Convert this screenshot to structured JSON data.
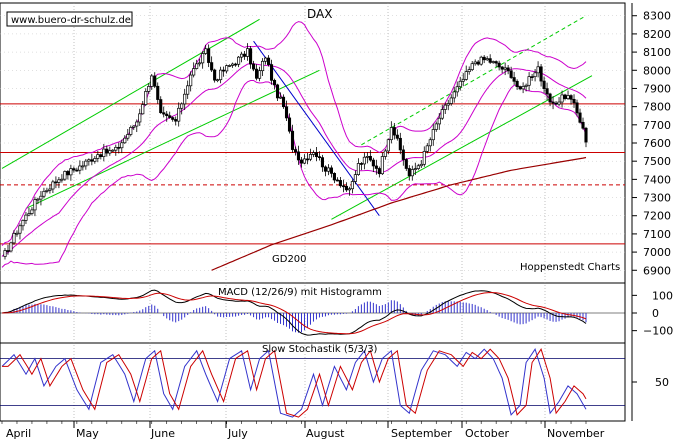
{
  "chart_data": {
    "type": "line",
    "title": "DAX",
    "watermark": "www.buero-dr-schulz.de",
    "credit": "Hoppenstedt Charts",
    "months": [
      "April",
      "May",
      "June",
      "July",
      "August",
      "September",
      "October",
      "November"
    ],
    "colors": {
      "candle": "#000000",
      "bollinger": "#cc00cc",
      "channel": "#00cc00",
      "downtrend": "#0000cc",
      "gd200": "#990000",
      "horizontal": "#cc0000",
      "macd": "#000000",
      "macd_signal": "#cc0000",
      "histogram": "#3333cc",
      "stoch_k": "#3333cc",
      "stoch_d": "#cc0000"
    },
    "price_panel": {
      "ylim": [
        6830,
        8370
      ],
      "yticks": [
        6900,
        7000,
        7100,
        7200,
        7300,
        7400,
        7500,
        7600,
        7700,
        7800,
        7900,
        8000,
        8100,
        8200,
        8300
      ],
      "gd200_label": "GD200",
      "horizontal_lines": [
        {
          "value": 7815,
          "style": "solid"
        },
        {
          "value": 7548,
          "style": "solid"
        },
        {
          "value": 7370,
          "style": "dashed"
        },
        {
          "value": 7045,
          "style": "solid"
        }
      ],
      "close_anchors": [
        {
          "t": 0,
          "v": 6960
        },
        {
          "t": 6,
          "v": 7150
        },
        {
          "t": 13,
          "v": 7320
        },
        {
          "t": 20,
          "v": 7420
        },
        {
          "t": 27,
          "v": 7480
        },
        {
          "t": 32,
          "v": 7540
        },
        {
          "t": 38,
          "v": 7560
        },
        {
          "t": 45,
          "v": 7720
        },
        {
          "t": 50,
          "v": 7980
        },
        {
          "t": 53,
          "v": 7750
        },
        {
          "t": 58,
          "v": 7720
        },
        {
          "t": 63,
          "v": 7980
        },
        {
          "t": 68,
          "v": 8100
        },
        {
          "t": 71,
          "v": 7950
        },
        {
          "t": 74,
          "v": 8000
        },
        {
          "t": 78,
          "v": 8050
        },
        {
          "t": 82,
          "v": 8100
        },
        {
          "t": 85,
          "v": 7950
        },
        {
          "t": 88,
          "v": 8080
        },
        {
          "t": 91,
          "v": 7900
        },
        {
          "t": 94,
          "v": 7800
        },
        {
          "t": 97,
          "v": 7580
        },
        {
          "t": 100,
          "v": 7500
        },
        {
          "t": 104,
          "v": 7560
        },
        {
          "t": 108,
          "v": 7460
        },
        {
          "t": 112,
          "v": 7400
        },
        {
          "t": 116,
          "v": 7330
        },
        {
          "t": 119,
          "v": 7480
        },
        {
          "t": 122,
          "v": 7520
        },
        {
          "t": 126,
          "v": 7450
        },
        {
          "t": 130,
          "v": 7700
        },
        {
          "t": 133,
          "v": 7560
        },
        {
          "t": 136,
          "v": 7420
        },
        {
          "t": 140,
          "v": 7500
        },
        {
          "t": 143,
          "v": 7620
        },
        {
          "t": 146,
          "v": 7740
        },
        {
          "t": 150,
          "v": 7850
        },
        {
          "t": 154,
          "v": 7950
        },
        {
          "t": 158,
          "v": 8050
        },
        {
          "t": 162,
          "v": 8060
        },
        {
          "t": 166,
          "v": 8020
        },
        {
          "t": 170,
          "v": 7980
        },
        {
          "t": 173,
          "v": 7880
        },
        {
          "t": 176,
          "v": 7960
        },
        {
          "t": 179,
          "v": 8020
        },
        {
          "t": 181,
          "v": 7880
        },
        {
          "t": 184,
          "v": 7800
        },
        {
          "t": 187,
          "v": 7860
        },
        {
          "t": 190,
          "v": 7850
        },
        {
          "t": 193,
          "v": 7720
        },
        {
          "t": 195,
          "v": 7620
        }
      ],
      "gd200": [
        {
          "t": 70,
          "v": 6900
        },
        {
          "t": 90,
          "v": 7040
        },
        {
          "t": 110,
          "v": 7150
        },
        {
          "t": 130,
          "v": 7270
        },
        {
          "t": 150,
          "v": 7370
        },
        {
          "t": 170,
          "v": 7450
        },
        {
          "t": 195,
          "v": 7520
        }
      ],
      "upper_channel": [
        {
          "line": 1,
          "t0": 0,
          "v0": 7460,
          "t1": 86,
          "v1": 8280
        },
        {
          "line": 2,
          "t0": 8,
          "v0": 7240,
          "t1": 106,
          "v1": 8000
        },
        {
          "line": 3,
          "t0": 110,
          "v0": 7180,
          "t1": 197,
          "v1": 7970
        },
        {
          "line": 4,
          "t0": 120,
          "v0": 7590,
          "t1": 195,
          "v1": 8300
        }
      ],
      "downtrend": {
        "t0": 84,
        "v0": 8160,
        "t1": 126,
        "v1": 7200
      }
    },
    "macd_panel": {
      "title": "MACD (12/26/9) mit Histogramm",
      "ylim": [
        -170,
        170
      ],
      "yticks": [
        100,
        0,
        -100
      ]
    },
    "stoch_panel": {
      "title": "Slow Stochastik (5/3/3)",
      "ylim": [
        0,
        100
      ],
      "yticks": [
        50
      ],
      "levels": [
        20,
        80
      ],
      "k_anchors": [
        {
          "t": 0,
          "v": 70
        },
        {
          "t": 4,
          "v": 85
        },
        {
          "t": 8,
          "v": 60
        },
        {
          "t": 11,
          "v": 80
        },
        {
          "t": 14,
          "v": 45
        },
        {
          "t": 18,
          "v": 70
        },
        {
          "t": 21,
          "v": 80
        },
        {
          "t": 25,
          "v": 40
        },
        {
          "t": 29,
          "v": 15
        },
        {
          "t": 33,
          "v": 75
        },
        {
          "t": 37,
          "v": 85
        },
        {
          "t": 41,
          "v": 60
        },
        {
          "t": 44,
          "v": 25
        },
        {
          "t": 48,
          "v": 80
        },
        {
          "t": 51,
          "v": 90
        },
        {
          "t": 54,
          "v": 35
        },
        {
          "t": 57,
          "v": 15
        },
        {
          "t": 61,
          "v": 70
        },
        {
          "t": 65,
          "v": 90
        },
        {
          "t": 68,
          "v": 60
        },
        {
          "t": 72,
          "v": 25
        },
        {
          "t": 76,
          "v": 80
        },
        {
          "t": 80,
          "v": 90
        },
        {
          "t": 83,
          "v": 40
        },
        {
          "t": 86,
          "v": 80
        },
        {
          "t": 89,
          "v": 90
        },
        {
          "t": 93,
          "v": 10
        },
        {
          "t": 97,
          "v": 5
        },
        {
          "t": 100,
          "v": 15
        },
        {
          "t": 104,
          "v": 60
        },
        {
          "t": 107,
          "v": 20
        },
        {
          "t": 111,
          "v": 70
        },
        {
          "t": 115,
          "v": 40
        },
        {
          "t": 118,
          "v": 75
        },
        {
          "t": 121,
          "v": 90
        },
        {
          "t": 124,
          "v": 50
        },
        {
          "t": 127,
          "v": 80
        },
        {
          "t": 130,
          "v": 90
        },
        {
          "t": 133,
          "v": 20
        },
        {
          "t": 136,
          "v": 10
        },
        {
          "t": 140,
          "v": 65
        },
        {
          "t": 144,
          "v": 90
        },
        {
          "t": 148,
          "v": 85
        },
        {
          "t": 152,
          "v": 70
        },
        {
          "t": 155,
          "v": 88
        },
        {
          "t": 158,
          "v": 80
        },
        {
          "t": 161,
          "v": 92
        },
        {
          "t": 164,
          "v": 80
        },
        {
          "t": 167,
          "v": 55
        },
        {
          "t": 170,
          "v": 8
        },
        {
          "t": 173,
          "v": 20
        },
        {
          "t": 175,
          "v": 75
        },
        {
          "t": 178,
          "v": 92
        },
        {
          "t": 181,
          "v": 55
        },
        {
          "t": 183,
          "v": 10
        },
        {
          "t": 186,
          "v": 25
        },
        {
          "t": 189,
          "v": 45
        },
        {
          "t": 192,
          "v": 35
        },
        {
          "t": 195,
          "v": 15
        }
      ]
    }
  }
}
